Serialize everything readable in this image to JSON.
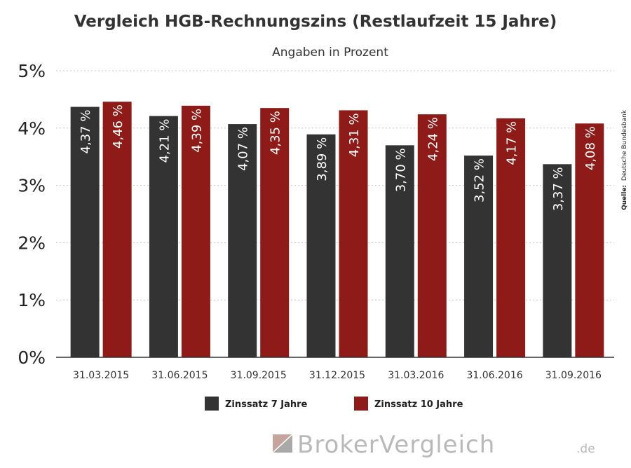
{
  "chart_data": {
    "type": "bar",
    "title": "Vergleich HGB-Rechnungszins (Restlaufzeit 15 Jahre)",
    "subtitle": "Angaben in Prozent",
    "categories": [
      "31.03.2015",
      "31.06.2015",
      "31.09.2015",
      "31.12.2015",
      "31.03.2016",
      "31.06.2016",
      "31.09.2016"
    ],
    "series": [
      {
        "name": "Zinssatz 7 Jahre",
        "color": "#333333",
        "values": [
          4.37,
          4.21,
          4.07,
          3.89,
          3.7,
          3.52,
          3.37
        ],
        "labels": [
          "4,37 %",
          "4,21 %",
          "4,07 %",
          "3,89 %",
          "3,70 %",
          "3,52 %",
          "3,37 %"
        ]
      },
      {
        "name": "Zinssatz 10 Jahre",
        "color": "#8e1b17",
        "values": [
          4.46,
          4.39,
          4.35,
          4.31,
          4.24,
          4.17,
          4.08
        ],
        "labels": [
          "4,46 %",
          "4,39 %",
          "4,35 %",
          "4,31 %",
          "4,24 %",
          "4,17 %",
          "4,08 %"
        ]
      }
    ],
    "ylim": [
      0,
      5
    ],
    "yticks": [
      0,
      1,
      2,
      3,
      4,
      5
    ],
    "ytick_labels": [
      "0%",
      "1%",
      "2%",
      "3%",
      "4%",
      "5%"
    ],
    "xlabel": "",
    "ylabel": "",
    "grid": true,
    "legend_position": "bottom-center",
    "source_label": "Quelle:",
    "source_value": "Deutsche Bundesbank"
  },
  "branding": {
    "logo_text": "BrokerVergleich",
    "logo_suffix": ".de"
  }
}
